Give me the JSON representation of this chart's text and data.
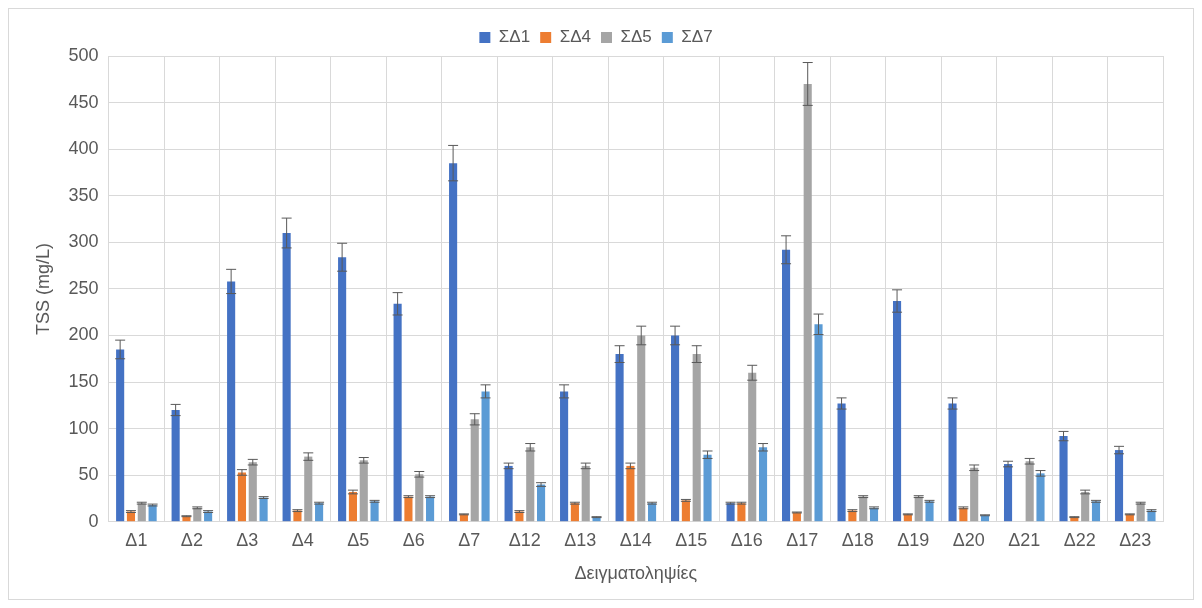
{
  "chart_data": {
    "type": "bar",
    "xlabel": "Δειγματοληψίες",
    "ylabel": "TSS (mg/L)",
    "categories": [
      "Δ1",
      "Δ2",
      "Δ3",
      "Δ4",
      "Δ5",
      "Δ6",
      "Δ7",
      "Δ12",
      "Δ13",
      "Δ14",
      "Δ15",
      "Δ16",
      "Δ17",
      "Δ18",
      "Δ19",
      "Δ20",
      "Δ21",
      "Δ22",
      "Δ23"
    ],
    "series": [
      {
        "name": "ΣΔ1",
        "color": "#4472c4",
        "values": [
          185,
          120,
          258,
          310,
          284,
          234,
          385,
          60,
          140,
          180,
          200,
          20,
          292,
          127,
          237,
          127,
          62,
          92,
          77
        ],
        "errors": [
          10,
          6,
          13,
          16,
          15,
          12,
          19,
          3,
          7,
          9,
          10,
          1,
          15,
          6,
          12,
          6,
          3,
          5,
          4
        ]
      },
      {
        "name": "ΣΔ4",
        "color": "#ed7d31",
        "values": [
          11,
          6,
          53,
          12,
          32,
          27,
          8,
          11,
          20,
          60,
          23,
          20,
          10,
          12,
          8,
          15,
          null,
          5,
          8
        ],
        "errors": [
          1,
          0.5,
          3,
          1,
          2,
          1,
          0.5,
          1,
          1,
          3,
          1,
          1,
          0.5,
          1,
          0.5,
          1,
          null,
          0.5,
          0.5
        ]
      },
      {
        "name": "ΣΔ5",
        "color": "#a5a5a5",
        "values": [
          20,
          15,
          64,
          70,
          66,
          51,
          110,
          80,
          60,
          200,
          180,
          160,
          470,
          27,
          27,
          58,
          65,
          32,
          20
        ],
        "errors": [
          1,
          1,
          3,
          4,
          3,
          3,
          6,
          4,
          3,
          10,
          9,
          8,
          23,
          1,
          1,
          3,
          3,
          2,
          1
        ]
      },
      {
        "name": "ΣΔ7",
        "color": "#5b9bd5",
        "values": [
          18,
          11,
          26,
          20,
          22,
          27,
          140,
          40,
          5,
          20,
          72,
          80,
          212,
          15,
          22,
          7,
          52,
          22,
          12
        ],
        "errors": [
          1,
          1,
          1,
          1,
          1,
          1,
          7,
          2,
          0.5,
          1,
          4,
          4,
          11,
          1,
          1,
          0.5,
          3,
          1,
          1
        ]
      }
    ],
    "ylim": [
      0,
      500
    ],
    "yticks": [
      0,
      50,
      100,
      150,
      200,
      250,
      300,
      350,
      400,
      450,
      500
    ],
    "grid": true,
    "legend": "top"
  }
}
